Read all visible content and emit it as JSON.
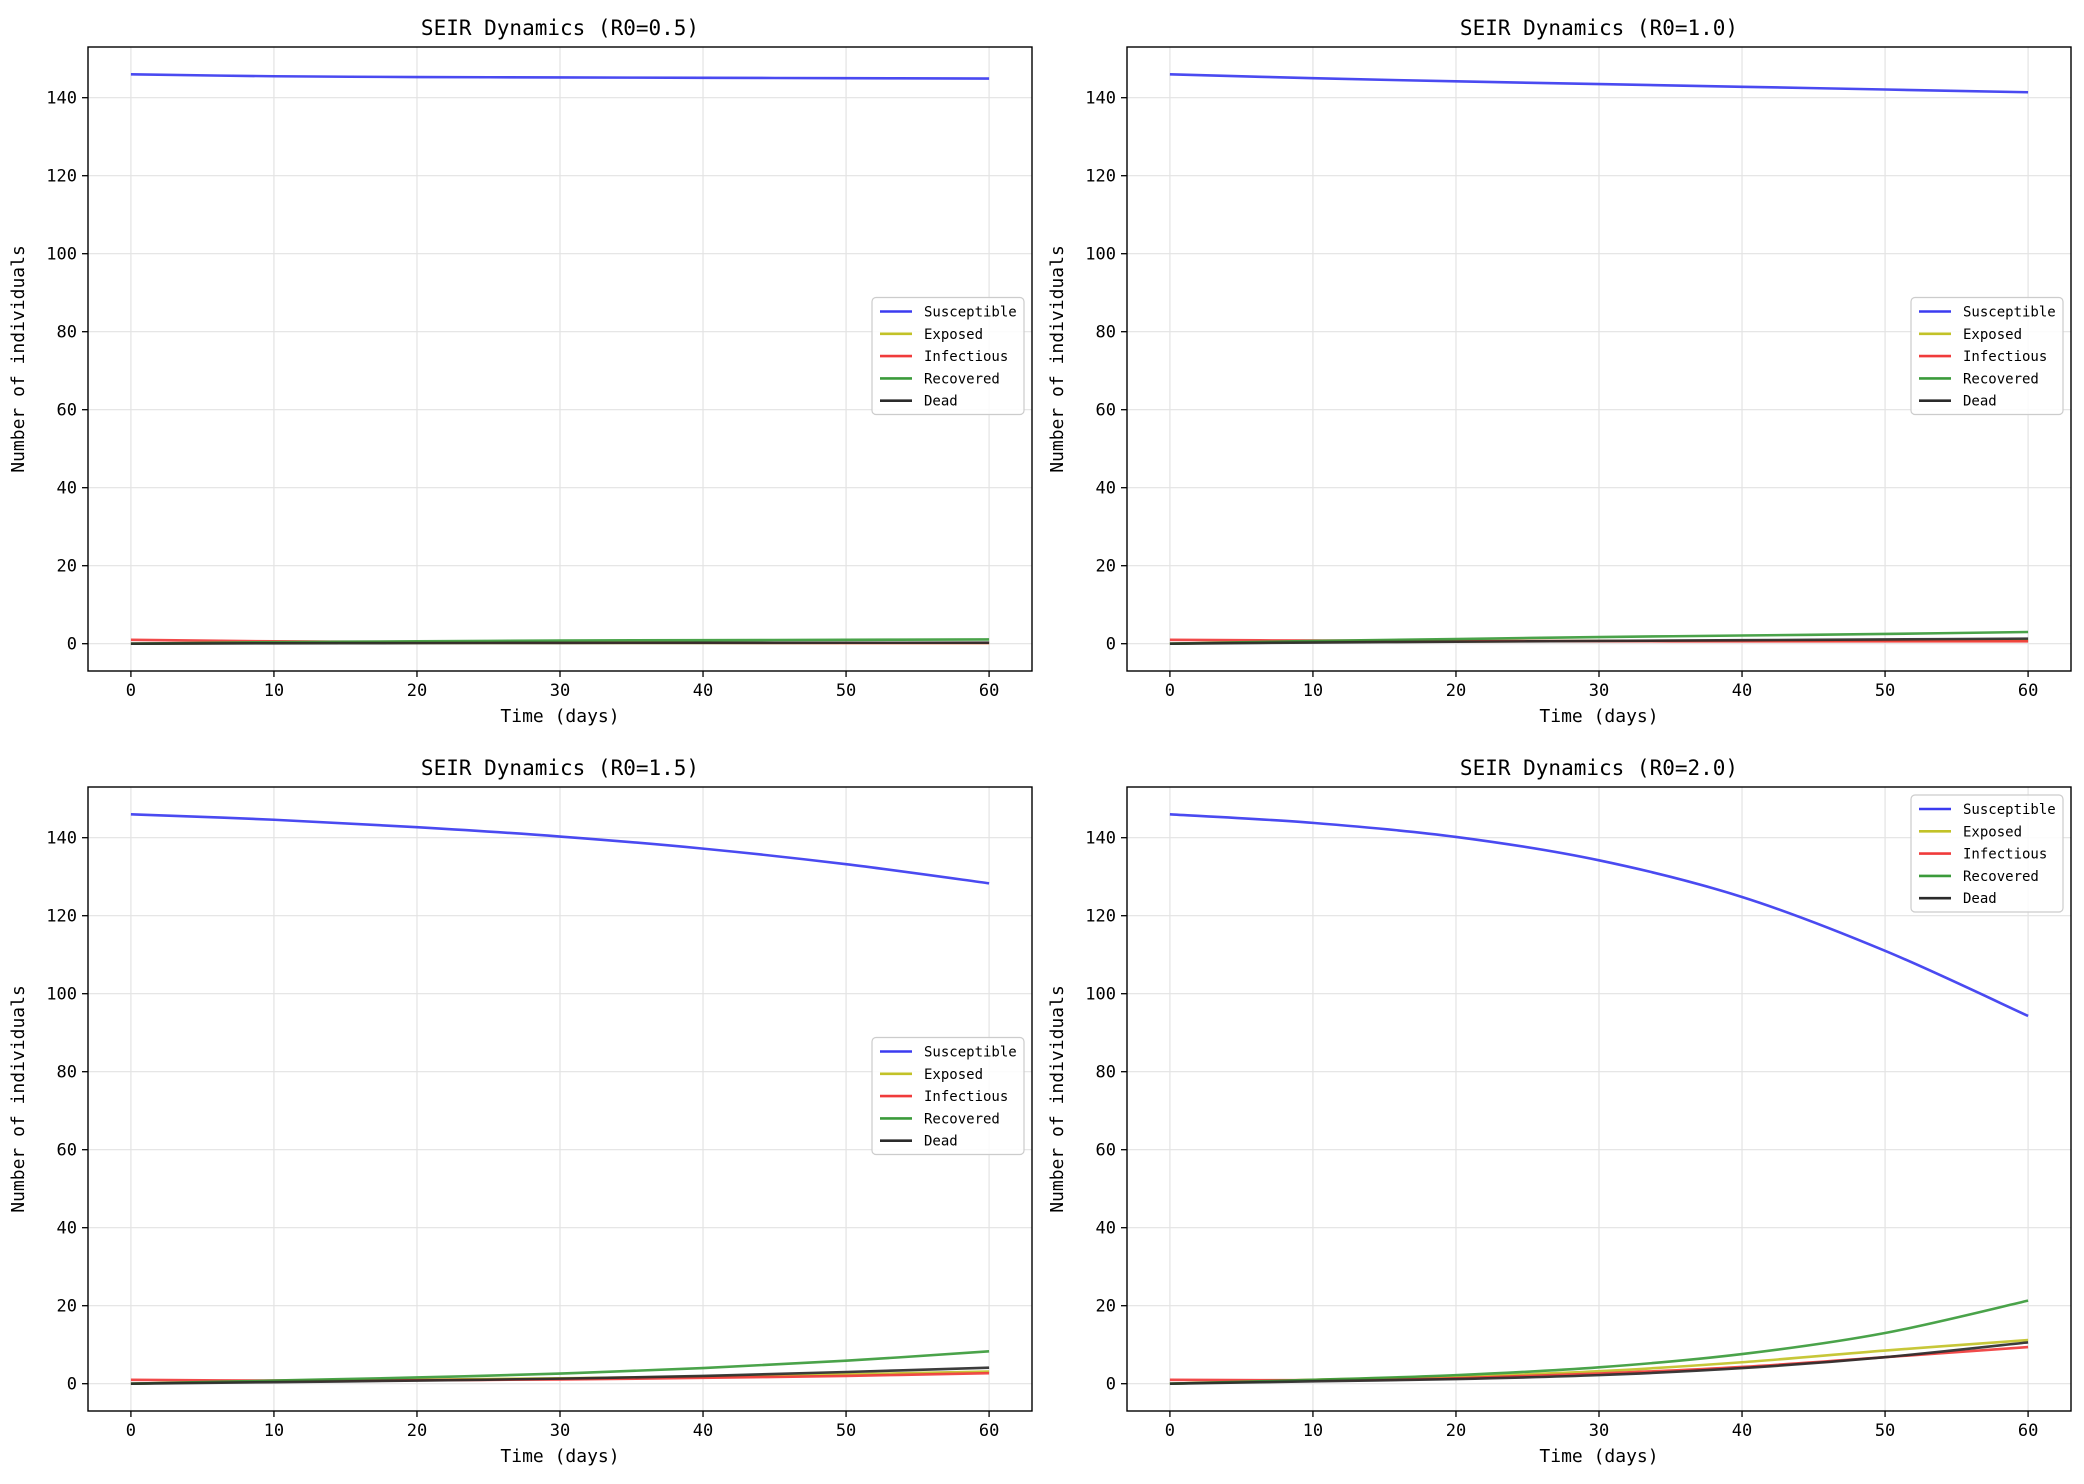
{
  "colors": {
    "Susceptible": "#3b3bf0",
    "Exposed": "#c2c228",
    "Infectious": "#f03b3b",
    "Recovered": "#3b9b3b",
    "Dead": "#2b2b2b"
  },
  "chart_data": [
    {
      "type": "line",
      "title": "SEIR Dynamics (R0=0.5)",
      "xlabel": "Time (days)",
      "ylabel": "Number of individuals",
      "xlim": [
        -3,
        63
      ],
      "ylim": [
        -7,
        153
      ],
      "xticks": [
        0,
        10,
        20,
        30,
        40,
        50,
        60
      ],
      "yticks": [
        0,
        20,
        40,
        60,
        80,
        100,
        120,
        140
      ],
      "grid": true,
      "legend_position": "center-right",
      "x": [
        0,
        10,
        20,
        30,
        40,
        50,
        60
      ],
      "series": [
        {
          "name": "Susceptible",
          "values": [
            146,
            145.5,
            145.3,
            145.2,
            145.1,
            145.0,
            144.9
          ]
        },
        {
          "name": "Exposed",
          "values": [
            0,
            0.2,
            0.2,
            0.2,
            0.2,
            0.2,
            0.2
          ]
        },
        {
          "name": "Infectious",
          "values": [
            1,
            0.6,
            0.4,
            0.3,
            0.25,
            0.2,
            0.2
          ]
        },
        {
          "name": "Recovered",
          "values": [
            0,
            0.4,
            0.6,
            0.8,
            0.9,
            1.0,
            1.1
          ]
        },
        {
          "name": "Dead",
          "values": [
            0,
            0.1,
            0.15,
            0.2,
            0.22,
            0.24,
            0.25
          ]
        }
      ]
    },
    {
      "type": "line",
      "title": "SEIR Dynamics (R0=1.0)",
      "xlabel": "Time (days)",
      "ylabel": "Number of individuals",
      "xlim": [
        -3,
        63
      ],
      "ylim": [
        -7,
        153
      ],
      "xticks": [
        0,
        10,
        20,
        30,
        40,
        50,
        60
      ],
      "yticks": [
        0,
        20,
        40,
        60,
        80,
        100,
        120,
        140
      ],
      "grid": true,
      "legend_position": "center-right",
      "x": [
        0,
        10,
        20,
        30,
        40,
        50,
        60
      ],
      "series": [
        {
          "name": "Susceptible",
          "values": [
            146,
            145.0,
            144.2,
            143.5,
            142.8,
            142.1,
            141.4
          ]
        },
        {
          "name": "Exposed",
          "values": [
            0,
            0.5,
            0.6,
            0.7,
            0.7,
            0.8,
            0.8
          ]
        },
        {
          "name": "Infectious",
          "values": [
            1,
            0.8,
            0.7,
            0.65,
            0.6,
            0.6,
            0.6
          ]
        },
        {
          "name": "Recovered",
          "values": [
            0,
            0.7,
            1.2,
            1.7,
            2.1,
            2.5,
            3.0
          ]
        },
        {
          "name": "Dead",
          "values": [
            0,
            0.3,
            0.5,
            0.7,
            0.9,
            1.1,
            1.3
          ]
        }
      ]
    },
    {
      "type": "line",
      "title": "SEIR Dynamics (R0=1.5)",
      "xlabel": "Time (days)",
      "ylabel": "Number of individuals",
      "xlim": [
        -3,
        63
      ],
      "ylim": [
        -7,
        153
      ],
      "xticks": [
        0,
        10,
        20,
        30,
        40,
        50,
        60
      ],
      "yticks": [
        0,
        20,
        40,
        60,
        80,
        100,
        120,
        140
      ],
      "grid": true,
      "legend_position": "center-right",
      "x": [
        0,
        10,
        20,
        30,
        40,
        50,
        60
      ],
      "series": [
        {
          "name": "Susceptible",
          "values": [
            146,
            144.6,
            142.7,
            140.3,
            137.2,
            133.2,
            128.3
          ]
        },
        {
          "name": "Exposed",
          "values": [
            0,
            0.7,
            1.0,
            1.4,
            1.8,
            2.4,
            3.1
          ]
        },
        {
          "name": "Infectious",
          "values": [
            1,
            0.8,
            0.9,
            1.1,
            1.5,
            2.0,
            2.7
          ]
        },
        {
          "name": "Recovered",
          "values": [
            0,
            0.8,
            1.6,
            2.6,
            4.0,
            5.9,
            8.3
          ]
        },
        {
          "name": "Dead",
          "values": [
            0,
            0.4,
            0.8,
            1.3,
            2.0,
            3.0,
            4.1
          ]
        }
      ]
    },
    {
      "type": "line",
      "title": "SEIR Dynamics (R0=2.0)",
      "xlabel": "Time (days)",
      "ylabel": "Number of individuals",
      "xlim": [
        -3,
        63
      ],
      "ylim": [
        -7,
        153
      ],
      "xticks": [
        0,
        10,
        20,
        30,
        40,
        50,
        60
      ],
      "yticks": [
        0,
        20,
        40,
        60,
        80,
        100,
        120,
        140
      ],
      "grid": true,
      "legend_position": "upper-right",
      "x": [
        0,
        10,
        20,
        30,
        40,
        50,
        60
      ],
      "series": [
        {
          "name": "Susceptible",
          "values": [
            146,
            143.8,
            140.2,
            134.2,
            124.8,
            111.0,
            94.3
          ]
        },
        {
          "name": "Exposed",
          "values": [
            0,
            1.0,
            1.8,
            3.2,
            5.5,
            8.5,
            11.2
          ]
        },
        {
          "name": "Infectious",
          "values": [
            1,
            0.9,
            1.4,
            2.6,
            4.3,
            6.8,
            9.4
          ]
        },
        {
          "name": "Recovered",
          "values": [
            0,
            1.0,
            2.2,
            4.2,
            7.6,
            13.0,
            21.3
          ]
        },
        {
          "name": "Dead",
          "values": [
            0,
            0.6,
            1.2,
            2.2,
            4.0,
            6.8,
            10.6
          ]
        }
      ]
    }
  ]
}
